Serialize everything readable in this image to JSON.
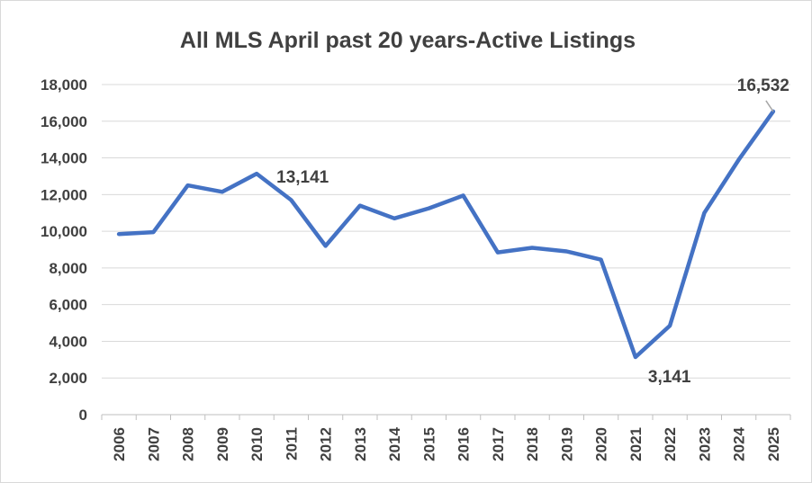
{
  "chart_data": {
    "type": "line",
    "title": "All MLS April past 20 years-Active Listings",
    "xlabel": "",
    "ylabel": "",
    "categories": [
      "2006",
      "2007",
      "2008",
      "2009",
      "2010",
      "2011",
      "2012",
      "2013",
      "2014",
      "2015",
      "2016",
      "2017",
      "2018",
      "2019",
      "2020",
      "2021",
      "2022",
      "2023",
      "2024",
      "2025"
    ],
    "series": [
      {
        "color": "#4472C4",
        "values": [
          9850,
          9950,
          12500,
          12150,
          13141,
          11700,
          9200,
          11400,
          10700,
          11250,
          11950,
          8850,
          9100,
          8900,
          8450,
          3141,
          4850,
          11000,
          13900,
          16532
        ]
      }
    ],
    "ylim": [
      0,
      18000
    ],
    "y_ticks": [
      0,
      2000,
      4000,
      6000,
      8000,
      10000,
      12000,
      14000,
      16000,
      18000
    ],
    "y_tick_labels": [
      "0",
      "2,000",
      "4,000",
      "6,000",
      "8,000",
      "10,000",
      "12,000",
      "14,000",
      "16,000",
      "18,000"
    ],
    "grid": true,
    "legend": "none",
    "annotations": [
      {
        "category": "2010",
        "value": 13141,
        "text": "13,141"
      },
      {
        "category": "2021",
        "value": 3141,
        "text": "3,141"
      },
      {
        "category": "2025",
        "value": 16532,
        "text": "16,532"
      }
    ],
    "colors": {
      "line": "#4472C4",
      "text": "#404040",
      "grid": "#d9d9d9",
      "leader": "#a6a6a6"
    }
  }
}
